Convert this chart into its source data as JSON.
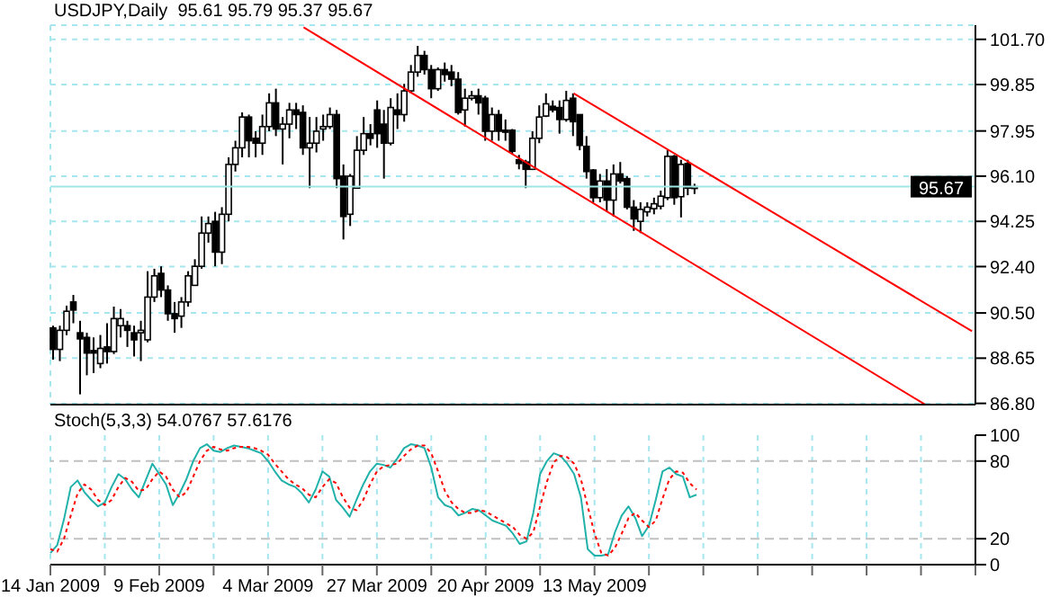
{
  "chart_data": [
    {
      "type": "candlestick",
      "title": "USDJPY,Daily  95.61 95.79 95.37 95.67",
      "categories": [
        null,
        null,
        null,
        null,
        null,
        null,
        null,
        null,
        null,
        null,
        null,
        null,
        null,
        null,
        null,
        null,
        null,
        null,
        null,
        null,
        null,
        null,
        null,
        null,
        null,
        null,
        null,
        null,
        null,
        null,
        null,
        null,
        null,
        null,
        null,
        null,
        null,
        null,
        null,
        null,
        null,
        null,
        null,
        null,
        null,
        null,
        null,
        null,
        null,
        null,
        null,
        null,
        null,
        null,
        null,
        null,
        null,
        null,
        null,
        null,
        null,
        null,
        null,
        null,
        null,
        null,
        null,
        null,
        null,
        null,
        null,
        null,
        null,
        null,
        null,
        null,
        null,
        null,
        null,
        null,
        null,
        null,
        null,
        null,
        null,
        null,
        null,
        null,
        null,
        null,
        null,
        null,
        null,
        null,
        null,
        null,
        null,
        null,
        null,
        null,
        null,
        null,
        null,
        null,
        null,
        null,
        null,
        null,
        null,
        null,
        null,
        null,
        null,
        null,
        null,
        null,
        null,
        null,
        null,
        null,
        null,
        null,
        null,
        null,
        null,
        null,
        null,
        null,
        null,
        null,
        null,
        null,
        null,
        null,
        null,
        null,
        null
      ],
      "ohlc": [
        [
          89.89,
          89.98,
          88.59,
          89.01
        ],
        [
          89.01,
          89.98,
          88.53,
          89.79
        ],
        [
          89.79,
          90.8,
          89.59,
          90.57
        ],
        [
          90.95,
          91.24,
          90.08,
          90.62
        ],
        [
          89.69,
          90.18,
          87.17,
          89.44
        ],
        [
          89.5,
          89.69,
          87.95,
          88.86
        ],
        [
          88.96,
          89.5,
          88.04,
          88.86
        ],
        [
          88.43,
          89.6,
          88.24,
          89.05
        ],
        [
          89.11,
          90.08,
          88.43,
          88.92
        ],
        [
          88.92,
          90.76,
          88.82,
          90.27
        ],
        [
          89.98,
          90.66,
          89.5,
          90.27
        ],
        [
          89.98,
          90.18,
          89.11,
          89.79
        ],
        [
          89.69,
          89.98,
          88.72,
          89.4
        ],
        [
          89.69,
          90.18,
          88.53,
          89.79
        ],
        [
          89.4,
          92.21,
          89.3,
          91.15
        ],
        [
          91.15,
          92.31,
          90.95,
          92.02
        ],
        [
          92.12,
          92.41,
          91.15,
          91.44
        ],
        [
          91.44,
          91.63,
          90.18,
          90.47
        ],
        [
          90.47,
          90.95,
          89.69,
          90.27
        ],
        [
          90.37,
          91.15,
          89.89,
          90.95
        ],
        [
          90.95,
          92.21,
          90.76,
          92.02
        ],
        [
          91.63,
          92.7,
          91.63,
          92.41
        ],
        [
          92.41,
          94.45,
          92.31,
          93.77
        ],
        [
          93.77,
          94.45,
          93.38,
          94.16
        ],
        [
          94.25,
          94.64,
          92.41,
          92.99
        ],
        [
          92.99,
          94.83,
          92.5,
          94.54
        ],
        [
          94.54,
          96.87,
          94.25,
          96.58
        ],
        [
          96.58,
          97.55,
          96.29,
          97.26
        ],
        [
          97.26,
          98.71,
          96.87,
          98.52
        ],
        [
          98.52,
          98.62,
          96.87,
          97.55
        ],
        [
          97.65,
          97.94,
          96.87,
          97.45
        ],
        [
          97.45,
          98.62,
          96.97,
          98.13
        ],
        [
          98.13,
          99.49,
          97.94,
          99.1
        ],
        [
          99.1,
          99.68,
          97.74,
          98.03
        ],
        [
          98.03,
          98.52,
          96.58,
          98.23
        ],
        [
          98.23,
          99.1,
          97.65,
          98.81
        ],
        [
          98.81,
          99.1,
          98.03,
          98.62
        ],
        [
          98.71,
          99.0,
          96.97,
          97.26
        ],
        [
          97.26,
          98.52,
          95.61,
          97.45
        ],
        [
          97.45,
          98.52,
          97.07,
          97.94
        ],
        [
          98.03,
          98.62,
          97.55,
          98.13
        ],
        [
          98.13,
          98.91,
          98.03,
          98.62
        ],
        [
          98.62,
          98.81,
          95.61,
          96.0
        ],
        [
          96.1,
          96.58,
          93.51,
          94.45
        ],
        [
          94.54,
          96.19,
          94.06,
          96.1
        ],
        [
          95.61,
          97.74,
          95.61,
          97.16
        ],
        [
          97.16,
          98.52,
          96.97,
          97.84
        ],
        [
          97.84,
          98.23,
          97.36,
          97.65
        ],
        [
          98.81,
          99.2,
          97.26,
          97.84
        ],
        [
          98.23,
          98.81,
          96.0,
          97.45
        ],
        [
          97.45,
          99.29,
          97.36,
          98.91
        ],
        [
          98.81,
          99.49,
          98.03,
          98.62
        ],
        [
          98.62,
          99.88,
          98.33,
          99.59
        ],
        [
          99.59,
          100.65,
          99.49,
          100.36
        ],
        [
          100.36,
          101.43,
          100.17,
          101.04
        ],
        [
          101.04,
          101.23,
          100.26,
          100.46
        ],
        [
          100.46,
          100.65,
          99.29,
          99.68
        ],
        [
          99.68,
          100.55,
          99.59,
          100.46
        ],
        [
          100.46,
          100.75,
          99.97,
          100.26
        ],
        [
          100.36,
          100.65,
          99.78,
          100.07
        ],
        [
          100.07,
          100.36,
          98.62,
          98.71
        ],
        [
          98.81,
          99.68,
          98.13,
          99.29
        ],
        [
          99.29,
          99.59,
          99.2,
          99.39
        ],
        [
          99.39,
          99.68,
          98.62,
          99.1
        ],
        [
          99.29,
          99.39,
          97.55,
          97.94
        ],
        [
          97.94,
          98.91,
          97.55,
          98.62
        ],
        [
          98.62,
          98.81,
          97.55,
          97.94
        ],
        [
          97.98,
          98.42,
          97.55,
          97.9
        ],
        [
          97.98,
          98.03,
          97.0,
          97.12
        ],
        [
          96.77,
          96.97,
          96.38,
          96.62
        ],
        [
          96.68,
          96.77,
          95.61,
          96.38
        ],
        [
          96.38,
          97.94,
          96.38,
          97.65
        ],
        [
          97.65,
          99.0,
          97.45,
          98.52
        ],
        [
          98.56,
          99.49,
          98.52,
          99.06
        ],
        [
          98.96,
          99.2,
          98.71,
          98.81
        ],
        [
          98.91,
          99.2,
          97.84,
          98.42
        ],
        [
          98.42,
          99.59,
          98.33,
          99.2
        ],
        [
          99.29,
          99.49,
          97.74,
          98.33
        ],
        [
          98.62,
          98.62,
          97.16,
          97.36
        ],
        [
          97.32,
          97.74,
          96.0,
          96.29
        ],
        [
          96.35,
          96.39,
          95.03,
          95.22
        ],
        [
          95.22,
          96.19,
          95.03,
          95.9
        ],
        [
          95.9,
          96.39,
          94.64,
          95.12
        ],
        [
          95.12,
          96.58,
          94.45,
          96.19
        ],
        [
          96.19,
          96.68,
          95.8,
          95.9
        ],
        [
          96.0,
          96.1,
          94.74,
          94.83
        ],
        [
          94.83,
          95.12,
          93.86,
          94.35
        ],
        [
          94.25,
          95.03,
          93.77,
          94.74
        ],
        [
          94.64,
          95.03,
          94.45,
          94.83
        ],
        [
          94.77,
          95.22,
          94.54,
          94.97
        ],
        [
          94.87,
          95.51,
          94.74,
          95.28
        ],
        [
          95.22,
          97.16,
          95.12,
          96.91
        ],
        [
          96.91,
          96.97,
          94.93,
          95.22
        ],
        [
          95.26,
          96.77,
          94.41,
          96.58
        ],
        [
          96.62,
          96.77,
          95.32,
          95.61
        ],
        [
          95.61,
          95.79,
          95.37,
          95.67
        ],
        null,
        null,
        null,
        null,
        null,
        null,
        null,
        null,
        null,
        null,
        null,
        null,
        null,
        null,
        null,
        null,
        null,
        null,
        null,
        null,
        null,
        null,
        null,
        null,
        null,
        null,
        null,
        null,
        null,
        null,
        null,
        null,
        null,
        null,
        null,
        null,
        null,
        null,
        null,
        null,
        null
      ],
      "series": [
        {
          "type": "line",
          "color": "#ff0000",
          "values": [
            null,
            null,
            null,
            null,
            null,
            null,
            null,
            null,
            null,
            null,
            null,
            null,
            null,
            null,
            null,
            null,
            null,
            null,
            null,
            null,
            null,
            null,
            null,
            null,
            null,
            null,
            null,
            null,
            null,
            null,
            null,
            null,
            null,
            null,
            null,
            null,
            null,
            102.19,
            null,
            null,
            null,
            null,
            null,
            null,
            null,
            null,
            null,
            null,
            null,
            null,
            null,
            null,
            null,
            null,
            null,
            null,
            null,
            null,
            null,
            null,
            null,
            null,
            null,
            null,
            null,
            null,
            null,
            null,
            null,
            null,
            null,
            null,
            null,
            null,
            null,
            null,
            null,
            null,
            null,
            null,
            null,
            null,
            null,
            null,
            null,
            null,
            null,
            null,
            null,
            null,
            null,
            null,
            null,
            null,
            null,
            null,
            null,
            null,
            null,
            null,
            null,
            null,
            null,
            null,
            null,
            null,
            null,
            null,
            null,
            null,
            null,
            null,
            null,
            null,
            null,
            null,
            null,
            null,
            null,
            null,
            null,
            null,
            null,
            null,
            null,
            null,
            null,
            null,
            null,
            86.76,
            null,
            null,
            null,
            null,
            null,
            null,
            null
          ]
        },
        {
          "type": "line",
          "color": "#ff0000",
          "values": [
            null,
            null,
            null,
            null,
            null,
            null,
            null,
            null,
            null,
            null,
            null,
            null,
            null,
            null,
            null,
            null,
            null,
            null,
            null,
            null,
            null,
            null,
            null,
            null,
            null,
            null,
            null,
            null,
            null,
            null,
            null,
            null,
            null,
            null,
            null,
            null,
            null,
            null,
            null,
            null,
            null,
            null,
            null,
            null,
            null,
            null,
            null,
            null,
            null,
            null,
            null,
            null,
            null,
            null,
            null,
            null,
            null,
            null,
            null,
            null,
            null,
            null,
            null,
            null,
            null,
            null,
            null,
            null,
            null,
            null,
            null,
            null,
            null,
            null,
            null,
            null,
            null,
            99.49,
            null,
            null,
            null,
            null,
            null,
            null,
            null,
            null,
            null,
            null,
            null,
            null,
            null,
            null,
            null,
            null,
            null,
            null,
            null,
            null,
            null,
            null,
            null,
            null,
            null,
            null,
            null,
            null,
            null,
            null,
            null,
            null,
            null,
            null,
            null,
            null,
            null,
            null,
            null,
            null,
            null,
            null,
            null,
            null,
            null,
            null,
            null,
            null,
            null,
            null,
            null,
            null,
            null,
            null,
            null,
            null,
            null,
            null,
            89.75
          ]
        }
      ],
      "ylim": [
        86.75,
        102.28
      ],
      "yticks": [
        {
          "value": 86.8,
          "label": "86.80"
        },
        88.65,
        {
          "value": 90.5,
          "label": "90.50"
        },
        {
          "value": 92.4,
          "label": "92.40"
        },
        94.25,
        {
          "value": 96.1,
          "label": "96.10"
        },
        97.95,
        99.85,
        {
          "value": 101.7,
          "label": "101.70"
        }
      ],
      "grid": true,
      "tick_labels": "y",
      "ref_lines": [
        {
          "axis": "y",
          "value": 95.67,
          "label": "95.67",
          "color": "#a0e6e6"
        }
      ]
    },
    {
      "type": "line",
      "title": "Stoch(5,3,3) 54.0767 57.6176",
      "categories": [
        "14 Jan 2009",
        null,
        null,
        null,
        null,
        null,
        null,
        null,
        null,
        null,
        null,
        null,
        null,
        null,
        null,
        null,
        "9 Feb 2009",
        null,
        null,
        null,
        null,
        null,
        null,
        null,
        null,
        null,
        null,
        null,
        null,
        null,
        null,
        null,
        "4 Mar 2009",
        null,
        null,
        null,
        null,
        null,
        null,
        null,
        null,
        null,
        null,
        null,
        null,
        null,
        null,
        null,
        "27 Mar 2009",
        null,
        null,
        null,
        null,
        null,
        null,
        null,
        null,
        null,
        null,
        null,
        null,
        null,
        null,
        null,
        "20 Apr 2009",
        null,
        null,
        null,
        null,
        null,
        null,
        null,
        null,
        null,
        null,
        null,
        null,
        null,
        null,
        null,
        "13 May 2009",
        null,
        null,
        null,
        null,
        null,
        null,
        null,
        null,
        null,
        null,
        null,
        null,
        null,
        null,
        null,
        null,
        null,
        null,
        null,
        null,
        null,
        null,
        null,
        null,
        null,
        null,
        null,
        null,
        null,
        null,
        null,
        null,
        null,
        null,
        null,
        null,
        null,
        null,
        null,
        null,
        null,
        null,
        null,
        null,
        null,
        null,
        null,
        null,
        null,
        null,
        null,
        null,
        null,
        null,
        null,
        null
      ],
      "series": [
        {
          "color": "#20b2aa",
          "values": [
            9,
            15,
            35,
            60,
            65,
            56,
            50,
            45,
            48,
            60,
            70,
            66,
            58,
            52,
            65,
            78,
            70,
            62,
            46,
            55,
            66,
            80,
            90,
            93,
            88,
            87,
            90,
            92,
            91,
            90,
            88,
            86,
            80,
            72,
            65,
            62,
            60,
            55,
            48,
            58,
            72,
            68,
            50,
            44,
            37,
            50,
            62,
            72,
            78,
            77,
            75,
            82,
            90,
            93,
            92,
            90,
            75,
            52,
            46,
            44,
            38,
            40,
            43,
            42,
            38,
            34,
            32,
            30,
            24,
            16,
            18,
            40,
            70,
            80,
            86,
            84,
            78,
            70,
            52,
            12,
            7,
            7,
            8,
            25,
            38,
            45,
            36,
            22,
            30,
            50,
            72,
            75,
            70,
            68,
            52,
            54,
            null,
            null,
            null,
            null,
            null,
            null,
            null,
            null,
            null,
            null,
            null,
            null,
            null,
            null,
            null,
            null,
            null,
            null,
            null,
            null,
            null,
            null,
            null,
            null,
            null,
            null,
            null,
            null,
            null,
            null,
            null,
            null,
            null,
            null,
            null,
            null,
            null,
            null,
            null,
            null,
            null
          ]
        },
        {
          "color": "#ff0000",
          "line_style": "dotted",
          "values": [
            12,
            10,
            20,
            38,
            55,
            62,
            58,
            50,
            46,
            50,
            60,
            67,
            64,
            57,
            58,
            66,
            72,
            68,
            58,
            52,
            56,
            68,
            80,
            88,
            91,
            89,
            88,
            90,
            91,
            91,
            90,
            88,
            85,
            78,
            72,
            66,
            62,
            59,
            54,
            52,
            60,
            66,
            63,
            52,
            44,
            42,
            50,
            62,
            72,
            76,
            77,
            78,
            84,
            89,
            92,
            92,
            86,
            72,
            57,
            48,
            43,
            40,
            40,
            42,
            41,
            38,
            35,
            32,
            29,
            23,
            20,
            25,
            45,
            64,
            79,
            84,
            83,
            78,
            66,
            45,
            24,
            9,
            7,
            13,
            24,
            36,
            40,
            34,
            29,
            34,
            51,
            66,
            72,
            71,
            63,
            58,
            null,
            null,
            null,
            null,
            null,
            null,
            null,
            null,
            null,
            null,
            null,
            null,
            null,
            null,
            null,
            null,
            null,
            null,
            null,
            null,
            null,
            null,
            null,
            null,
            null,
            null,
            null,
            null,
            null,
            null,
            null,
            null,
            null,
            null,
            null,
            null,
            null,
            null,
            null,
            null,
            null
          ]
        }
      ],
      "ylim": [
        0,
        100
      ],
      "yticks": [
        0,
        20,
        80,
        100
      ],
      "grid": "x",
      "ref_lines": [
        {
          "axis": "y",
          "value": 20,
          "color": "#c0c0c0",
          "line_style": "dashed"
        },
        {
          "axis": "y",
          "value": 80,
          "color": "#c0c0c0",
          "line_style": "dashed"
        }
      ]
    }
  ]
}
